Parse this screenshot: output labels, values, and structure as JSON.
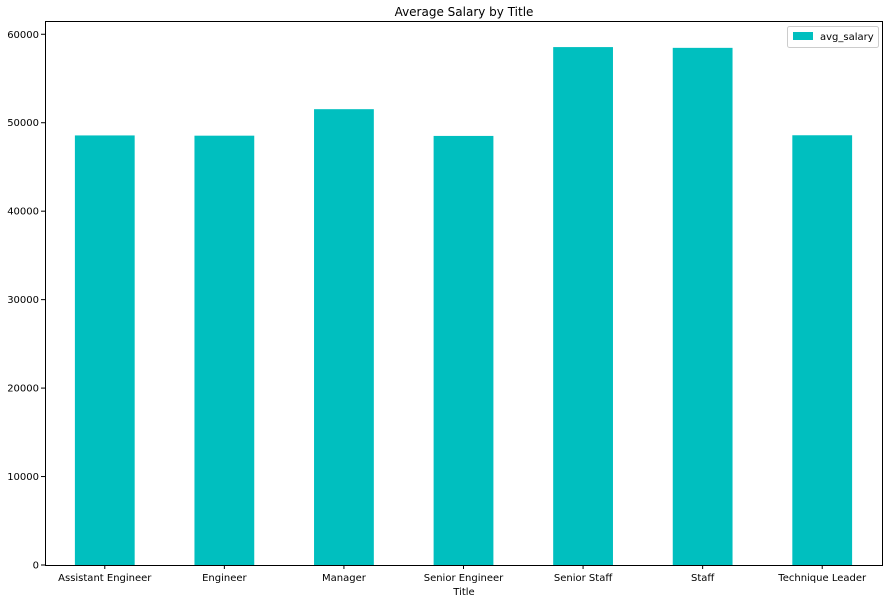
{
  "chart_data": {
    "type": "bar",
    "title": "Average Salary by Title",
    "xlabel": "Title",
    "ylabel": "",
    "categories": [
      "Assistant Engineer",
      "Engineer",
      "Manager",
      "Senior Engineer",
      "Senior Staff",
      "Staff",
      "Technique Leader"
    ],
    "series": [
      {
        "name": "avg_salary",
        "values": [
          48564,
          48535,
          51531,
          48507,
          58550,
          58465,
          48583
        ]
      }
    ],
    "ylim": [
      0,
      61500
    ],
    "yticks": [
      0,
      10000,
      20000,
      30000,
      40000,
      50000,
      60000
    ],
    "grid": false,
    "legend_position": "top-right",
    "colors": {
      "bar": "#00bfbf"
    }
  }
}
